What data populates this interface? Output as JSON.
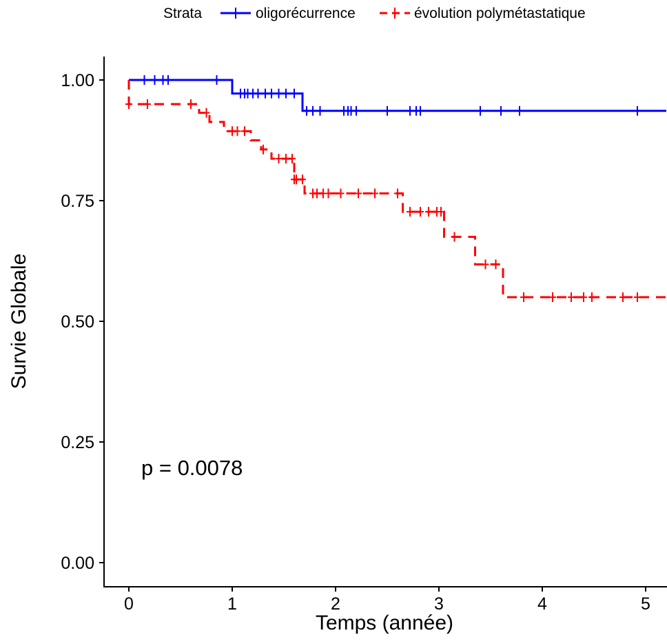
{
  "chart_data": {
    "type": "line",
    "subtype": "kaplan-meier",
    "title": "",
    "xlabel": "Temps (année)",
    "ylabel": "Survie Globale",
    "xlim": [
      -0.2,
      5.2
    ],
    "ylim": [
      -0.05,
      1.05
    ],
    "x_ticks": [
      "0",
      "1",
      "2",
      "3",
      "4",
      "5"
    ],
    "y_ticks": [
      "0.00",
      "0.25",
      "0.50",
      "0.75",
      "1.00"
    ],
    "grid": false,
    "legend": {
      "title": "Strata",
      "position": "top",
      "entries": [
        "oligorécurrence",
        "évolution polymétastatique"
      ]
    },
    "annotation": "p = 0.0078",
    "series": [
      {
        "name": "oligorécurrence",
        "color": "#0000ff",
        "line_style": "solid",
        "steps": [
          [
            0,
            1.0
          ],
          [
            1.0,
            0.972
          ],
          [
            1.68,
            0.936
          ],
          [
            5.2,
            0.936
          ]
        ],
        "censor": [
          0.15,
          0.25,
          0.33,
          0.38,
          0.85,
          1.08,
          1.12,
          1.15,
          1.2,
          1.25,
          1.32,
          1.38,
          1.45,
          1.52,
          1.6,
          1.72,
          1.78,
          1.85,
          2.08,
          2.12,
          2.15,
          2.2,
          2.5,
          2.72,
          2.78,
          2.82,
          3.4,
          3.6,
          3.78,
          4.92
        ]
      },
      {
        "name": "évolution polymétastatique",
        "color": "#ff0000",
        "line_style": "dashed",
        "steps": [
          [
            0,
            1.0
          ],
          [
            0.0,
            0.95
          ],
          [
            0.68,
            0.932
          ],
          [
            0.78,
            0.913
          ],
          [
            0.92,
            0.894
          ],
          [
            1.18,
            0.875
          ],
          [
            1.28,
            0.856
          ],
          [
            1.38,
            0.837
          ],
          [
            1.6,
            0.794
          ],
          [
            1.7,
            0.765
          ],
          [
            2.65,
            0.727
          ],
          [
            3.05,
            0.675
          ],
          [
            3.35,
            0.618
          ],
          [
            3.62,
            0.55
          ],
          [
            5.2,
            0.55
          ]
        ],
        "censor": [
          0.0,
          0.18,
          0.6,
          0.75,
          1.0,
          1.05,
          1.12,
          1.3,
          1.45,
          1.52,
          1.58,
          1.6,
          1.62,
          1.68,
          1.78,
          1.82,
          1.88,
          1.93,
          2.05,
          2.22,
          2.38,
          2.6,
          2.72,
          2.82,
          2.9,
          2.98,
          3.02,
          3.15,
          3.45,
          3.55,
          3.82,
          4.1,
          4.28,
          4.4,
          4.48,
          4.78,
          4.92
        ]
      }
    ]
  }
}
